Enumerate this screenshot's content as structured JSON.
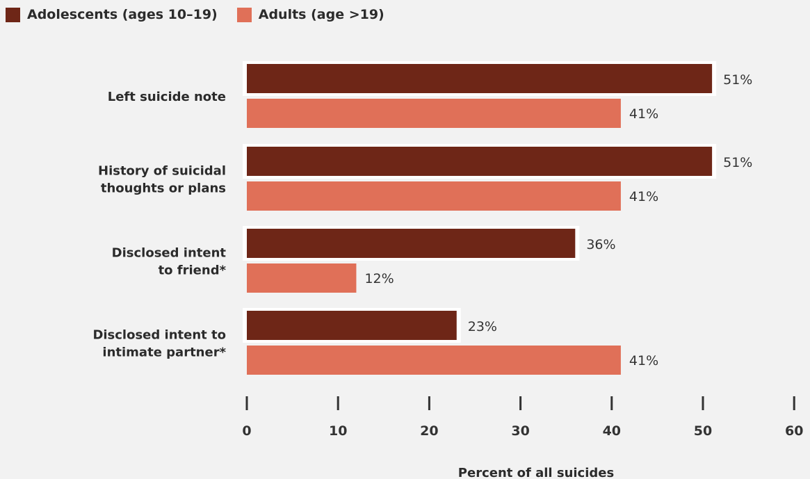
{
  "colors": {
    "background": "#f2f2f2",
    "adolescents": "#6e2617",
    "adults": "#e07058",
    "highlight_frame": "#ffffff",
    "text": "#2b2b2b"
  },
  "legend": [
    {
      "label": "Adolescents (ages 10–19)",
      "color": "#6e2617"
    },
    {
      "label": "Adults (age >19)",
      "color": "#e07058"
    }
  ],
  "chart_data": {
    "type": "bar",
    "orientation": "horizontal",
    "categories": [
      [
        "Left suicide note"
      ],
      [
        "History of suicidal",
        "thoughts or plans"
      ],
      [
        "Disclosed intent",
        "to friend*"
      ],
      [
        "Disclosed intent to",
        "intimate partner*"
      ]
    ],
    "series": [
      {
        "name": "Adolescents (ages 10–19)",
        "values": [
          51,
          51,
          36,
          23
        ],
        "labels": [
          "51%",
          "51%",
          "36%",
          "23%"
        ],
        "color": "#6e2617"
      },
      {
        "name": "Adults (age >19)",
        "values": [
          41,
          41,
          12,
          41
        ],
        "labels": [
          "41%",
          "41%",
          "12%",
          "41%"
        ],
        "color": "#e07058"
      }
    ],
    "xlim": [
      0,
      60
    ],
    "xticks": [
      0,
      10,
      20,
      30,
      40,
      50,
      60
    ],
    "xlabel": "Percent of all suicides",
    "ylabel": "",
    "grid": false,
    "legend_position": "top-left"
  }
}
